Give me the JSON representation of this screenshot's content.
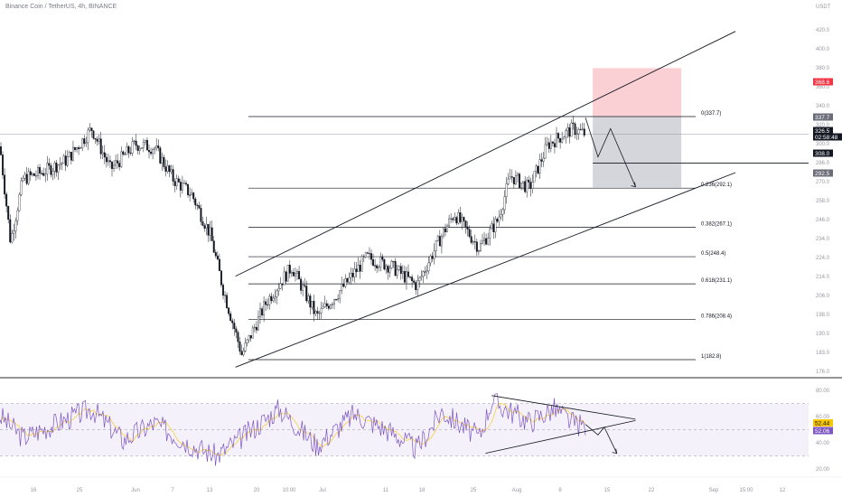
{
  "header": {
    "title": "Binance Coin / TetherUS, 4h, BINANCE"
  },
  "price_axis": {
    "unit": "USDT",
    "ticks": [
      "420.0",
      "400.0",
      "380.0",
      "360.0",
      "340.0",
      "320.0",
      "300.0",
      "286.0",
      "270.0",
      "258.0",
      "246.0",
      "234.0",
      "224.0",
      "214.0",
      "206.0",
      "198.0",
      "190.0",
      "183.0",
      "176.0"
    ],
    "tags": [
      {
        "text": "368.6",
        "color": "#f23645"
      },
      {
        "text": "337.7",
        "color": "#6a6d78"
      },
      {
        "text": "326.5",
        "color": "#131722"
      },
      {
        "text": "02:58:48",
        "color": "#131722"
      },
      {
        "text": "308.0",
        "color": "#131722"
      },
      {
        "text": "292.5",
        "color": "#6a6d78"
      }
    ]
  },
  "rsi_axis": {
    "ticks": [
      "80.00",
      "60.00",
      "40.00",
      "20.00"
    ],
    "tags": [
      {
        "text": "52.44",
        "color": "#f7c600",
        "textColor": "#131722"
      },
      {
        "text": "52.06",
        "color": "#7e57c2",
        "textColor": "#ffffff"
      }
    ]
  },
  "time_axis": {
    "ticks": [
      "16",
      "25",
      "Jun",
      "7",
      "13",
      "20",
      "10:00",
      "Jul",
      "11",
      "18",
      "25",
      "Aug",
      "8",
      "15",
      "22",
      "Sep",
      "15:00",
      "12"
    ]
  },
  "fib_levels": [
    {
      "label": "0(337.7)"
    },
    {
      "label": "0.236(292.1)"
    },
    {
      "label": "0.382(267.1)"
    },
    {
      "label": "0.5(248.4)"
    },
    {
      "label": "0.618(231.1)"
    },
    {
      "label": "0.786(208.4)"
    },
    {
      "label": "1(182.8)"
    }
  ],
  "colors": {
    "up": "#131722",
    "down": "#131722",
    "rsi": "#7e57c2",
    "rsi_ma": "#f7c600",
    "stop_zone": "#f7a9b1",
    "target_zone": "#b2b5be",
    "rsi_band": "#ede7f6"
  },
  "chart_data": {
    "type": "candlestick",
    "symbol": "Binance Coin / TetherUS",
    "interval": "4h",
    "exchange": "BINANCE",
    "y_unit": "USDT",
    "ylim": [
      170,
      430
    ],
    "x_range": [
      "May 12",
      "Sep 14"
    ],
    "price_path": [
      {
        "x": "May 10",
        "y": 330
      },
      {
        "x": "May 12",
        "y": 258
      },
      {
        "x": "May 14",
        "y": 298
      },
      {
        "x": "May 17",
        "y": 302
      },
      {
        "x": "May 21",
        "y": 310
      },
      {
        "x": "May 25",
        "y": 330
      },
      {
        "x": "May 28",
        "y": 304
      },
      {
        "x": "Jun 1",
        "y": 320
      },
      {
        "x": "Jun 4",
        "y": 318
      },
      {
        "x": "Jun 7",
        "y": 298
      },
      {
        "x": "Jun 10",
        "y": 288
      },
      {
        "x": "Jun 13",
        "y": 262
      },
      {
        "x": "Jun 15",
        "y": 228
      },
      {
        "x": "Jun 18",
        "y": 186
      },
      {
        "x": "Jun 22",
        "y": 220
      },
      {
        "x": "Jun 26",
        "y": 242
      },
      {
        "x": "Jun 30",
        "y": 210
      },
      {
        "x": "Jul 4",
        "y": 228
      },
      {
        "x": "Jul 8",
        "y": 248
      },
      {
        "x": "Jul 12",
        "y": 242
      },
      {
        "x": "Jul 16",
        "y": 230
      },
      {
        "x": "Jul 20",
        "y": 262
      },
      {
        "x": "Jul 22",
        "y": 276
      },
      {
        "x": "Jul 26",
        "y": 254
      },
      {
        "x": "Jul 29",
        "y": 272
      },
      {
        "x": "Jul 31",
        "y": 300
      },
      {
        "x": "Aug 3",
        "y": 292
      },
      {
        "x": "Aug 6",
        "y": 320
      },
      {
        "x": "Aug 10",
        "y": 330
      },
      {
        "x": "Aug 12",
        "y": 326.5
      }
    ],
    "last_price": 326.5,
    "fibonacci": [
      {
        "ratio": 0,
        "price": 337.7
      },
      {
        "ratio": 0.236,
        "price": 292.1
      },
      {
        "ratio": 0.382,
        "price": 267.1
      },
      {
        "ratio": 0.5,
        "price": 248.4
      },
      {
        "ratio": 0.618,
        "price": 231.1
      },
      {
        "ratio": 0.786,
        "price": 208.4
      },
      {
        "ratio": 1,
        "price": 182.8
      }
    ],
    "position": {
      "side": "short",
      "entry": 337.7,
      "stop": 368.6,
      "target": 292.5
    },
    "horizontal_line": 308.0,
    "channel": {
      "upper": [
        {
          "x": "Jun 17",
          "y": 236
        },
        {
          "x": "Sep 5",
          "y": 392
        }
      ],
      "lower": [
        {
          "x": "Jun 17",
          "y": 178
        },
        {
          "x": "Sep 5",
          "y": 302
        }
      ]
    },
    "projection": [
      {
        "x": "Aug 12",
        "y": 337
      },
      {
        "x": "Aug 14",
        "y": 312
      },
      {
        "x": "Aug 16",
        "y": 330
      },
      {
        "x": "Aug 20",
        "y": 293
      }
    ],
    "rsi": {
      "period": 14,
      "value": 52.44,
      "ma": 52.06,
      "ylim": [
        20,
        82
      ],
      "band": [
        30,
        70
      ],
      "path": [
        {
          "x": "May 10",
          "y": 62
        },
        {
          "x": "May 14",
          "y": 44
        },
        {
          "x": "May 20",
          "y": 56
        },
        {
          "x": "May 25",
          "y": 66
        },
        {
          "x": "May 30",
          "y": 42
        },
        {
          "x": "Jun 4",
          "y": 55
        },
        {
          "x": "Jun 10",
          "y": 38
        },
        {
          "x": "Jun 14",
          "y": 30
        },
        {
          "x": "Jun 18",
          "y": 44
        },
        {
          "x": "Jun 24",
          "y": 66
        },
        {
          "x": "Jun 30",
          "y": 38
        },
        {
          "x": "Jul 6",
          "y": 62
        },
        {
          "x": "Jul 12",
          "y": 48
        },
        {
          "x": "Jul 16",
          "y": 35
        },
        {
          "x": "Jul 20",
          "y": 64
        },
        {
          "x": "Jul 26",
          "y": 44
        },
        {
          "x": "Jul 28",
          "y": 72
        },
        {
          "x": "Aug 3",
          "y": 56
        },
        {
          "x": "Aug 7",
          "y": 66
        },
        {
          "x": "Aug 10",
          "y": 55
        },
        {
          "x": "Aug 12",
          "y": 52.44
        }
      ],
      "upper_trend": [
        {
          "x": "Jul 28",
          "y": 76
        },
        {
          "x": "Aug 20",
          "y": 58
        }
      ],
      "lower_trend": [
        {
          "x": "Jul 27",
          "y": 32
        },
        {
          "x": "Aug 20",
          "y": 57
        }
      ],
      "projection": [
        {
          "x": "Aug 12",
          "y": 54
        },
        {
          "x": "Aug 14",
          "y": 46
        },
        {
          "x": "Aug 15",
          "y": 52
        },
        {
          "x": "Aug 17",
          "y": 32
        }
      ]
    }
  }
}
